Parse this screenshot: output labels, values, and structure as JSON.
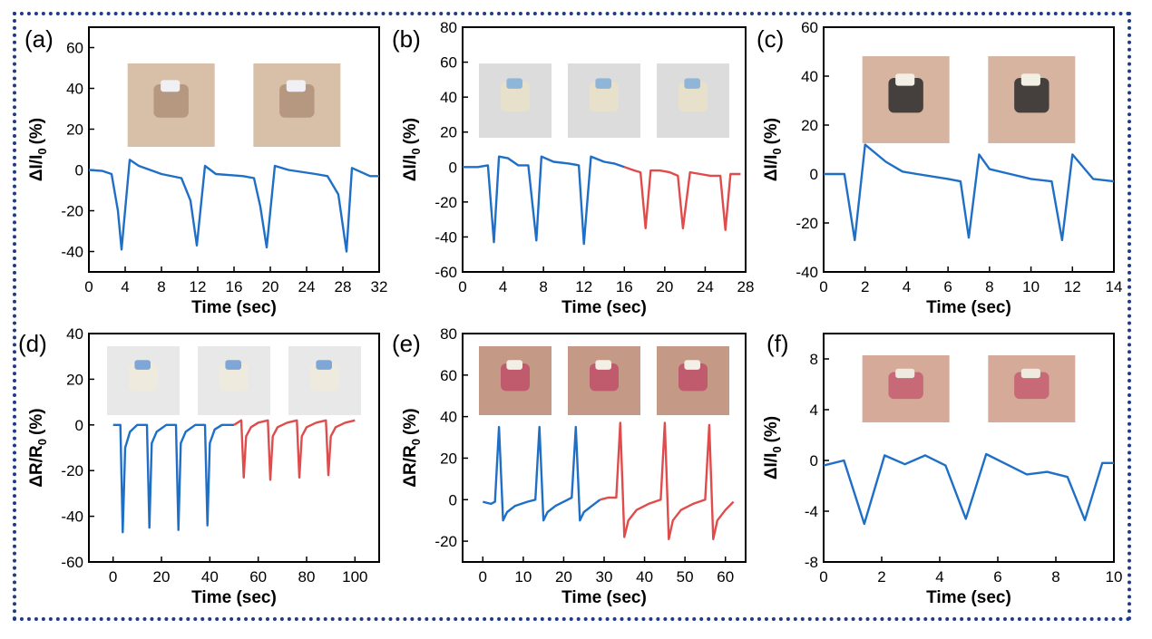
{
  "colors": {
    "frame": "#1f3a8a",
    "blue": "#1f6fc7",
    "red": "#e04b4b"
  },
  "chart_data": [
    {
      "panel": "(a)",
      "type": "line",
      "xlabel": "Time (sec)",
      "ylabel_base": "ΔI/I",
      "ylabel_sub": "0",
      "ylabel_unit": "(%)",
      "xlim": [
        0,
        32
      ],
      "ylim": [
        -50,
        70
      ],
      "xticks": [
        0,
        4,
        8,
        12,
        16,
        20,
        24,
        28,
        32
      ],
      "yticks": [
        -40,
        -20,
        0,
        20,
        40,
        60
      ],
      "photos": [
        "skin-elbow",
        "skin-elbow"
      ],
      "series": [
        {
          "color": "blue",
          "x": [
            0,
            1.5,
            2.5,
            3.2,
            3.6,
            4.5,
            5.5,
            8,
            10.2,
            11.2,
            11.9,
            12.8,
            14,
            17,
            18.2,
            18.9,
            19.6,
            20.5,
            22,
            25,
            26.3,
            27.5,
            28.4,
            29,
            30,
            31,
            32
          ],
          "y": [
            0,
            -0.5,
            -2,
            -20,
            -39,
            5,
            2,
            -2,
            -4,
            -15,
            -37,
            2,
            -2,
            -3,
            -4,
            -18,
            -38,
            2,
            0,
            -2,
            -3,
            -12,
            -40,
            1,
            -1,
            -3,
            -3
          ]
        }
      ]
    },
    {
      "panel": "(b)",
      "type": "line",
      "xlabel": "Time (sec)",
      "ylabel_base": "ΔI/I",
      "ylabel_sub": "0",
      "ylabel_unit": "(%)",
      "xlim": [
        0,
        28
      ],
      "ylim": [
        -60,
        80
      ],
      "xticks": [
        0,
        4,
        8,
        12,
        16,
        20,
        24,
        28
      ],
      "yticks": [
        -60,
        -40,
        -20,
        0,
        20,
        40,
        60,
        80
      ],
      "photos": [
        "blue-glove",
        "blue-glove",
        "blue-glove"
      ],
      "series": [
        {
          "color": "blue",
          "x": [
            0,
            1.5,
            2.5,
            3.1,
            3.6,
            4.5,
            5.5,
            6.5,
            7.3,
            7.8,
            9,
            10.5,
            11.5,
            12,
            12.7,
            14,
            15,
            16
          ],
          "y": [
            0,
            0,
            1,
            -43,
            6,
            5,
            1,
            1,
            -42,
            6,
            3,
            2,
            1,
            -44,
            6,
            3,
            2,
            0
          ]
        },
        {
          "color": "red",
          "x": [
            16,
            17,
            17.6,
            18.1,
            18.6,
            19.5,
            20.5,
            21.3,
            21.8,
            22.5,
            23.5,
            24.5,
            25.5,
            26,
            26.5,
            27.5
          ],
          "y": [
            0,
            -2,
            -3,
            -35,
            -2,
            -2,
            -3,
            -5,
            -35,
            -3,
            -4,
            -5,
            -5,
            -36,
            -4,
            -4
          ]
        }
      ]
    },
    {
      "panel": "(c)",
      "type": "line",
      "xlabel": "Time (sec)",
      "ylabel_base": "ΔI/I",
      "ylabel_sub": "0",
      "ylabel_unit": "(%)",
      "xlim": [
        0,
        14
      ],
      "ylim": [
        -40,
        60
      ],
      "xticks": [
        0,
        2,
        4,
        6,
        8,
        10,
        12,
        14
      ],
      "yticks": [
        -40,
        -20,
        0,
        20,
        40,
        60
      ],
      "photos": [
        "neck",
        "neck"
      ],
      "series": [
        {
          "color": "blue",
          "x": [
            0,
            1,
            1.5,
            2,
            3,
            3.8,
            4.5,
            6,
            6.6,
            7,
            7.5,
            8,
            9,
            10,
            11,
            11.5,
            12,
            13,
            14
          ],
          "y": [
            0,
            0,
            -27,
            12,
            5,
            1,
            0,
            -2,
            -3,
            -26,
            8,
            2,
            0,
            -2,
            -3,
            -27,
            8,
            -2,
            -3
          ]
        }
      ]
    },
    {
      "panel": "(d)",
      "type": "line",
      "xlabel": "Time (sec)",
      "ylabel_base": "ΔR/R",
      "ylabel_sub": "0",
      "ylabel_unit": "(%)",
      "xlim": [
        -10,
        110
      ],
      "ylim": [
        -60,
        40
      ],
      "xticks": [
        0,
        20,
        40,
        60,
        80,
        100
      ],
      "yticks": [
        -60,
        -40,
        -20,
        0,
        20,
        40
      ],
      "photos": [
        "blue-glove-finger",
        "blue-glove-finger",
        "blue-glove-finger"
      ],
      "series": [
        {
          "color": "blue",
          "x": [
            0,
            3,
            4,
            5,
            7,
            10,
            14,
            15,
            16,
            18,
            22,
            26,
            27,
            28,
            30,
            34,
            38,
            39,
            40,
            42,
            45,
            50
          ],
          "y": [
            0,
            0,
            -47,
            -10,
            -3,
            0,
            0,
            -45,
            -8,
            -3,
            0,
            0,
            -46,
            -8,
            -3,
            0,
            0,
            -44,
            -8,
            -2,
            0,
            0
          ]
        },
        {
          "color": "red",
          "x": [
            50,
            53,
            54,
            55,
            57,
            60,
            64,
            65,
            66,
            68,
            72,
            76,
            77,
            78,
            80,
            84,
            88,
            89,
            90,
            92,
            96,
            100
          ],
          "y": [
            0,
            2,
            -23,
            -5,
            -1,
            1,
            2,
            -24,
            -5,
            -1,
            1,
            2,
            -23,
            -5,
            -1,
            1,
            2,
            -22,
            -5,
            -1,
            1,
            2
          ]
        }
      ]
    },
    {
      "panel": "(e)",
      "type": "line",
      "xlabel": "Time (sec)",
      "ylabel_base": "ΔR/R",
      "ylabel_sub": "0",
      "ylabel_unit": "(%)",
      "xlim": [
        -5,
        65
      ],
      "ylim": [
        -30,
        80
      ],
      "xticks": [
        0,
        10,
        20,
        30,
        40,
        50,
        60
      ],
      "yticks": [
        -20,
        0,
        20,
        40,
        60,
        80
      ],
      "photos": [
        "mouth",
        "mouth",
        "mouth"
      ],
      "series": [
        {
          "color": "blue",
          "x": [
            0,
            2,
            3,
            4,
            5,
            6,
            8,
            11,
            13,
            14,
            15,
            16,
            18,
            21,
            22,
            23,
            24,
            25,
            27,
            29
          ],
          "y": [
            -1,
            -2,
            -1,
            35,
            -10,
            -6,
            -3,
            -1,
            0,
            35,
            -10,
            -6,
            -3,
            0,
            1,
            35,
            -10,
            -6,
            -3,
            0
          ]
        },
        {
          "color": "red",
          "x": [
            29,
            31,
            33,
            34,
            35,
            36,
            38,
            41,
            44,
            45,
            46,
            47,
            49,
            52,
            55,
            56,
            57,
            58,
            60,
            62
          ],
          "y": [
            0,
            1,
            1,
            37,
            -18,
            -10,
            -5,
            -2,
            0,
            37,
            -19,
            -10,
            -5,
            -2,
            0,
            36,
            -19,
            -10,
            -5,
            -1
          ]
        }
      ]
    },
    {
      "panel": "(f)",
      "type": "line",
      "xlabel": "Time (sec)",
      "ylabel_base": "ΔI/I",
      "ylabel_sub": "0",
      "ylabel_unit": "(%)",
      "xlim": [
        0,
        10
      ],
      "ylim": [
        -8,
        10
      ],
      "xticks": [
        0,
        2,
        4,
        6,
        8,
        10
      ],
      "yticks": [
        -8,
        -4,
        0,
        4,
        8
      ],
      "photos": [
        "lips",
        "lips"
      ],
      "series": [
        {
          "color": "blue",
          "x": [
            0,
            0.7,
            1.4,
            2.1,
            2.8,
            3.5,
            4.2,
            4.9,
            5.6,
            6.3,
            7,
            7.7,
            8.4,
            9,
            9.6,
            10
          ],
          "y": [
            -0.4,
            0,
            -5,
            0.4,
            -0.3,
            0.4,
            -0.4,
            -4.6,
            0.5,
            -0.3,
            -1.1,
            -0.9,
            -1.3,
            -4.7,
            -0.2,
            -0.2
          ]
        }
      ]
    }
  ]
}
